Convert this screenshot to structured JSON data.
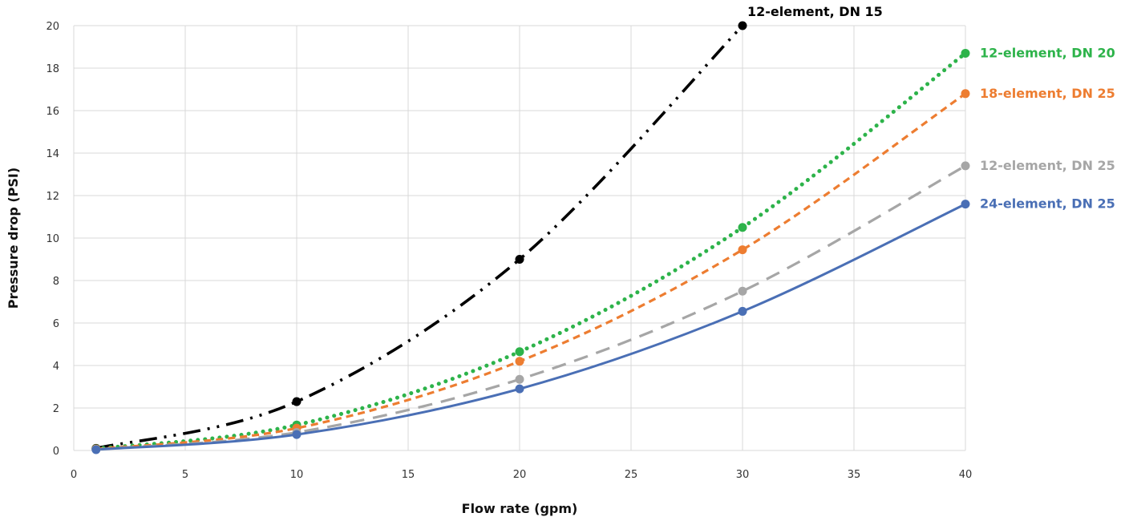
{
  "chart_data": {
    "type": "line",
    "title": "",
    "xlabel": "Flow rate (gpm)",
    "ylabel": "Pressure drop (PSI)",
    "xlim": [
      0,
      40
    ],
    "ylim": [
      0,
      20
    ],
    "xticks": [
      0,
      5,
      10,
      15,
      20,
      25,
      30,
      35,
      40
    ],
    "yticks": [
      0,
      2,
      4,
      6,
      8,
      10,
      12,
      14,
      16,
      18,
      20
    ],
    "grid": true,
    "legend": "inline labels at line ends",
    "series": [
      {
        "name": "12-element, DN 15",
        "color": "#000000",
        "dash": "dash-dot-dot",
        "x": [
          1,
          10,
          20,
          30
        ],
        "y": [
          0.1,
          2.3,
          9.0,
          20.0
        ]
      },
      {
        "name": "12-element, DN 20",
        "color": "#2db34a",
        "dash": "dotted",
        "x": [
          1,
          10,
          20,
          30,
          40
        ],
        "y": [
          0.08,
          1.2,
          4.65,
          10.5,
          18.7
        ]
      },
      {
        "name": "18-element, DN 25",
        "color": "#ed7d31",
        "dash": "short-dash",
        "x": [
          1,
          10,
          20,
          30,
          40
        ],
        "y": [
          0.07,
          1.05,
          4.2,
          9.45,
          16.8
        ]
      },
      {
        "name": "12-element, DN 25",
        "color": "#a6a6a6",
        "dash": "long-dash",
        "x": [
          1,
          10,
          20,
          30,
          40
        ],
        "y": [
          0.05,
          0.85,
          3.35,
          7.5,
          13.4
        ]
      },
      {
        "name": "24-element, DN 25",
        "color": "#4a6fb5",
        "dash": "solid",
        "x": [
          1,
          10,
          20,
          30,
          40
        ],
        "y": [
          0.04,
          0.75,
          2.9,
          6.55,
          11.6
        ]
      }
    ]
  }
}
